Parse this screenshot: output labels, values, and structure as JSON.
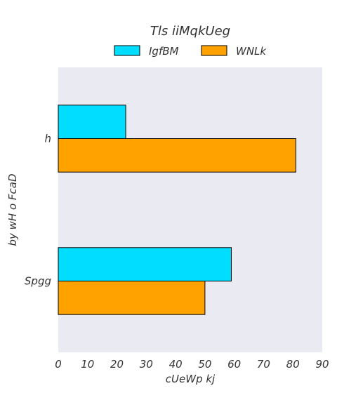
{
  "chart_data": {
    "type": "bar",
    "orientation": "horizontal",
    "title": "Tls iiMqkUeg",
    "xlabel": "cUeWp kj",
    "ylabel": "by wH o FcaD",
    "categories": [
      "h",
      "Spgg"
    ],
    "series": [
      {
        "name": "IgfBM",
        "values": [
          23,
          59
        ],
        "color": "#00ddff"
      },
      {
        "name": "WNLk",
        "values": [
          81,
          50
        ],
        "color": "#ffa200"
      }
    ],
    "xlim": [
      0,
      90
    ],
    "xticks": [
      0,
      10,
      20,
      30,
      40,
      50,
      60,
      70,
      80,
      90
    ],
    "grid": false,
    "legend_position": "top-center",
    "plot_background": "#eaeaf2"
  }
}
